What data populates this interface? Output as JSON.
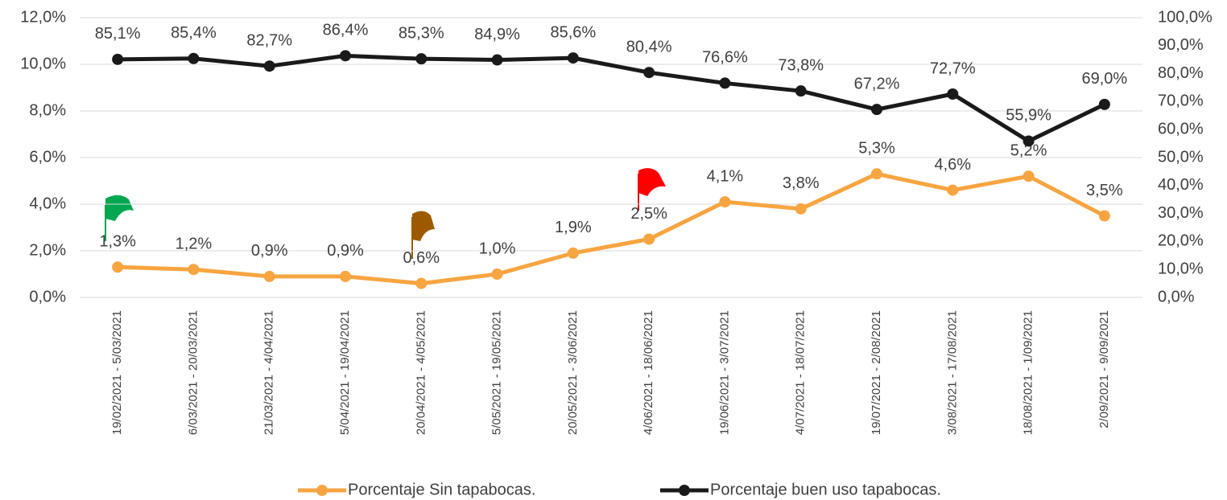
{
  "chart_data": {
    "type": "line",
    "categories": [
      "19/02/2021 - 5/03/2021",
      "6/03/2021 - 20/03/2021",
      "21/03/2021 - 4/04/2021",
      "5/04/2021 - 19/04/2021",
      "20/04/2021 - 4/05/2021",
      "5/05/2021 - 19/05/2021",
      "20/05/2021 - 3/06/2021",
      "4/06/2021 - 18/06/2021",
      "19/06/2021 - 3/07/2021",
      "4/07/2021 - 18/07/2021",
      "19/07/2021 - 2/08/2021",
      "3/08/2021 - 17/08/2021",
      "18/08/2021 - 1/09/2021",
      "2/09/2021 - 9/09/2021"
    ],
    "series": [
      {
        "name": "Porcentaje Sin tapabocas.",
        "color": "#f7a541",
        "values": [
          1.3,
          1.2,
          0.9,
          0.9,
          0.6,
          1.0,
          1.9,
          2.5,
          4.1,
          3.8,
          5.3,
          4.6,
          5.2,
          3.5
        ],
        "value_labels": [
          "1,3%",
          "1,2%",
          "0,9%",
          "0,9%",
          "0,6%",
          "1,0%",
          "1,9%",
          "2,5%",
          "4,1%",
          "3,8%",
          "5,3%",
          "4,6%",
          "5,2%",
          "3,5%"
        ]
      },
      {
        "name": "Porcentaje buen uso tapabocas.",
        "color": "#1a1a1a",
        "axis": "y2",
        "values": [
          85.1,
          85.4,
          82.7,
          86.4,
          85.3,
          84.9,
          85.6,
          80.4,
          76.6,
          73.8,
          67.2,
          72.7,
          55.9,
          69.0
        ],
        "value_labels": [
          "85,1%",
          "85,4%",
          "82,7%",
          "86,4%",
          "85,3%",
          "84,9%",
          "85,6%",
          "80,4%",
          "76,6%",
          "73,8%",
          "67,2%",
          "72,7%",
          "55,9%",
          "69,0%"
        ]
      }
    ],
    "ylim": [
      0,
      12
    ],
    "yticks": [
      {
        "value": 0,
        "label": "0,0%"
      },
      {
        "value": 2,
        "label": "2,0%"
      },
      {
        "value": 4,
        "label": "4,0%"
      },
      {
        "value": 6,
        "label": "6,0%"
      },
      {
        "value": 8,
        "label": "8,0%"
      },
      {
        "value": 10,
        "label": "10,0%"
      },
      {
        "value": 12,
        "label": "12,0%"
      }
    ],
    "y2lim": [
      0,
      100
    ],
    "y2ticks": [
      {
        "value": 0,
        "label": "0,0%"
      },
      {
        "value": 10,
        "label": "10,0%"
      },
      {
        "value": 20,
        "label": "20,0%"
      },
      {
        "value": 30,
        "label": "30,0%"
      },
      {
        "value": 40,
        "label": "40,0%"
      },
      {
        "value": 50,
        "label": "50,0%"
      },
      {
        "value": 60,
        "label": "60,0%"
      },
      {
        "value": 70,
        "label": "70,0%"
      },
      {
        "value": 80,
        "label": "80,0%"
      },
      {
        "value": 90,
        "label": "90,0%"
      },
      {
        "value": 100,
        "label": "100,0%"
      }
    ],
    "grid": true,
    "legend": "bottom"
  }
}
